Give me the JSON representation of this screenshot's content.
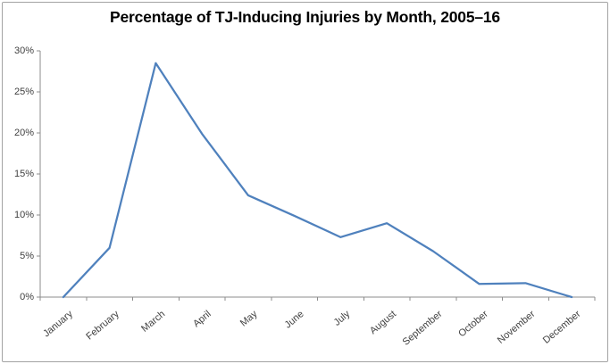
{
  "chart_data": {
    "type": "line",
    "title": "Percentage of TJ-Inducing Injuries by Month, 2005–16",
    "categories": [
      "January",
      "February",
      "March",
      "April",
      "May",
      "June",
      "July",
      "August",
      "September",
      "October",
      "November",
      "December"
    ],
    "series": [
      {
        "name": "Percentage of TJ-inducing injuries",
        "values": [
          0,
          6.0,
          28.5,
          19.9,
          12.4,
          9.9,
          7.3,
          9.0,
          5.6,
          1.6,
          1.7,
          0
        ]
      }
    ],
    "xlabel": "",
    "ylabel": "",
    "ylim": [
      0,
      30
    ],
    "y_ticks": [
      0,
      5,
      10,
      15,
      20,
      25,
      30
    ],
    "y_tick_labels": [
      "0%",
      "5%",
      "10%",
      "15%",
      "20%",
      "25%",
      "30%"
    ],
    "grid": false,
    "legend": "none",
    "x_label_rotation_deg": -40,
    "colors": {
      "line": "#4F81BD",
      "axis": "#8C8C8C",
      "tick_label": "#3F3F3F",
      "title": "#000000",
      "background": "#FFFFFF",
      "border": "#A3A3A3"
    }
  }
}
